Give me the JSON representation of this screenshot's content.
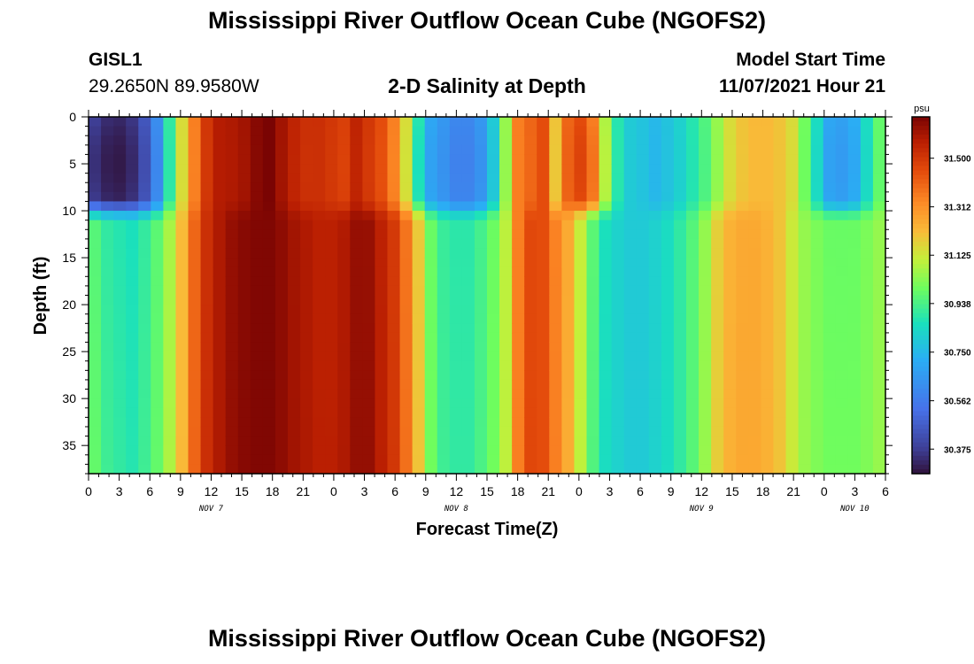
{
  "header": {
    "title": "Mississippi River Outflow Ocean Cube (NGOFS2)",
    "station": "GISL1",
    "coords": "29.2650N  89.9580W",
    "subtitle": "2-D Salinity at Depth",
    "model_start_label": "Model Start Time",
    "model_start_value": "11/07/2021 Hour 21"
  },
  "footer": {
    "title": "Mississippi River Outflow Ocean Cube (NGOFS2)"
  },
  "chart_data": {
    "type": "heatmap",
    "xlabel": "Forecast Time(Z)",
    "ylabel": "Depth (ft)",
    "x_tick_labels": [
      "0",
      "3",
      "6",
      "9",
      "12",
      "15",
      "18",
      "21",
      "0",
      "3",
      "6",
      "9",
      "12",
      "15",
      "18",
      "21",
      "0",
      "3",
      "6",
      "9",
      "12",
      "15",
      "18",
      "21",
      "0",
      "3",
      "6"
    ],
    "x_range_hours": [
      0,
      78
    ],
    "day_labels": [
      {
        "label": "NOV 7",
        "hour": 12
      },
      {
        "label": "NOV 8",
        "hour": 36
      },
      {
        "label": "NOV 9",
        "hour": 60
      },
      {
        "label": "NOV 10",
        "hour": 75
      }
    ],
    "y_ticks": [
      0,
      5,
      10,
      15,
      20,
      25,
      30,
      35
    ],
    "y_range": [
      0,
      38
    ],
    "colorbar": {
      "unit": "psu",
      "range": [
        30.28,
        31.66
      ],
      "ticks": [
        "31.500",
        "31.312",
        "31.125",
        "30.938",
        "30.750",
        "30.562",
        "30.375"
      ],
      "tick_values": [
        31.5,
        31.312,
        31.125,
        30.938,
        30.75,
        30.562,
        30.375
      ]
    },
    "grid": false,
    "surface_layer_depth": 10,
    "surface_layer_values": [
      30.38,
      30.34,
      30.33,
      30.36,
      30.45,
      30.62,
      30.9,
      31.15,
      31.35,
      31.5,
      31.57,
      31.58,
      31.6,
      31.64,
      31.66,
      31.6,
      31.55,
      31.52,
      31.52,
      31.5,
      31.48,
      31.55,
      31.5,
      31.45,
      31.35,
      31.15,
      30.88,
      30.7,
      30.65,
      30.6,
      30.6,
      30.65,
      30.8,
      31.05,
      31.35,
      31.4,
      31.45,
      31.2,
      31.4,
      31.45,
      31.35,
      31.08,
      30.88,
      30.8,
      30.78,
      30.75,
      30.78,
      30.82,
      30.88,
      30.95,
      31.05,
      31.15,
      31.2,
      31.22,
      31.22,
      31.2,
      31.15,
      31.0,
      30.85,
      30.7,
      30.68,
      30.72,
      30.85,
      30.98
    ],
    "deep_layer_values": [
      30.98,
      30.92,
      30.9,
      30.88,
      30.92,
      30.98,
      31.08,
      31.22,
      31.4,
      31.52,
      31.58,
      31.62,
      31.64,
      31.65,
      31.65,
      31.63,
      31.6,
      31.58,
      31.56,
      31.56,
      31.58,
      31.62,
      31.62,
      31.56,
      31.5,
      31.38,
      31.2,
      31.0,
      30.92,
      30.9,
      30.9,
      30.94,
      31.0,
      31.1,
      31.35,
      31.46,
      31.45,
      31.35,
      31.25,
      31.1,
      30.95,
      30.85,
      30.82,
      30.8,
      30.8,
      30.82,
      30.85,
      30.9,
      30.96,
      31.05,
      31.18,
      31.24,
      31.26,
      31.26,
      31.24,
      31.2,
      31.12,
      31.05,
      31.02,
      31.0,
      31.0,
      31.0,
      31.02,
      31.05
    ]
  }
}
